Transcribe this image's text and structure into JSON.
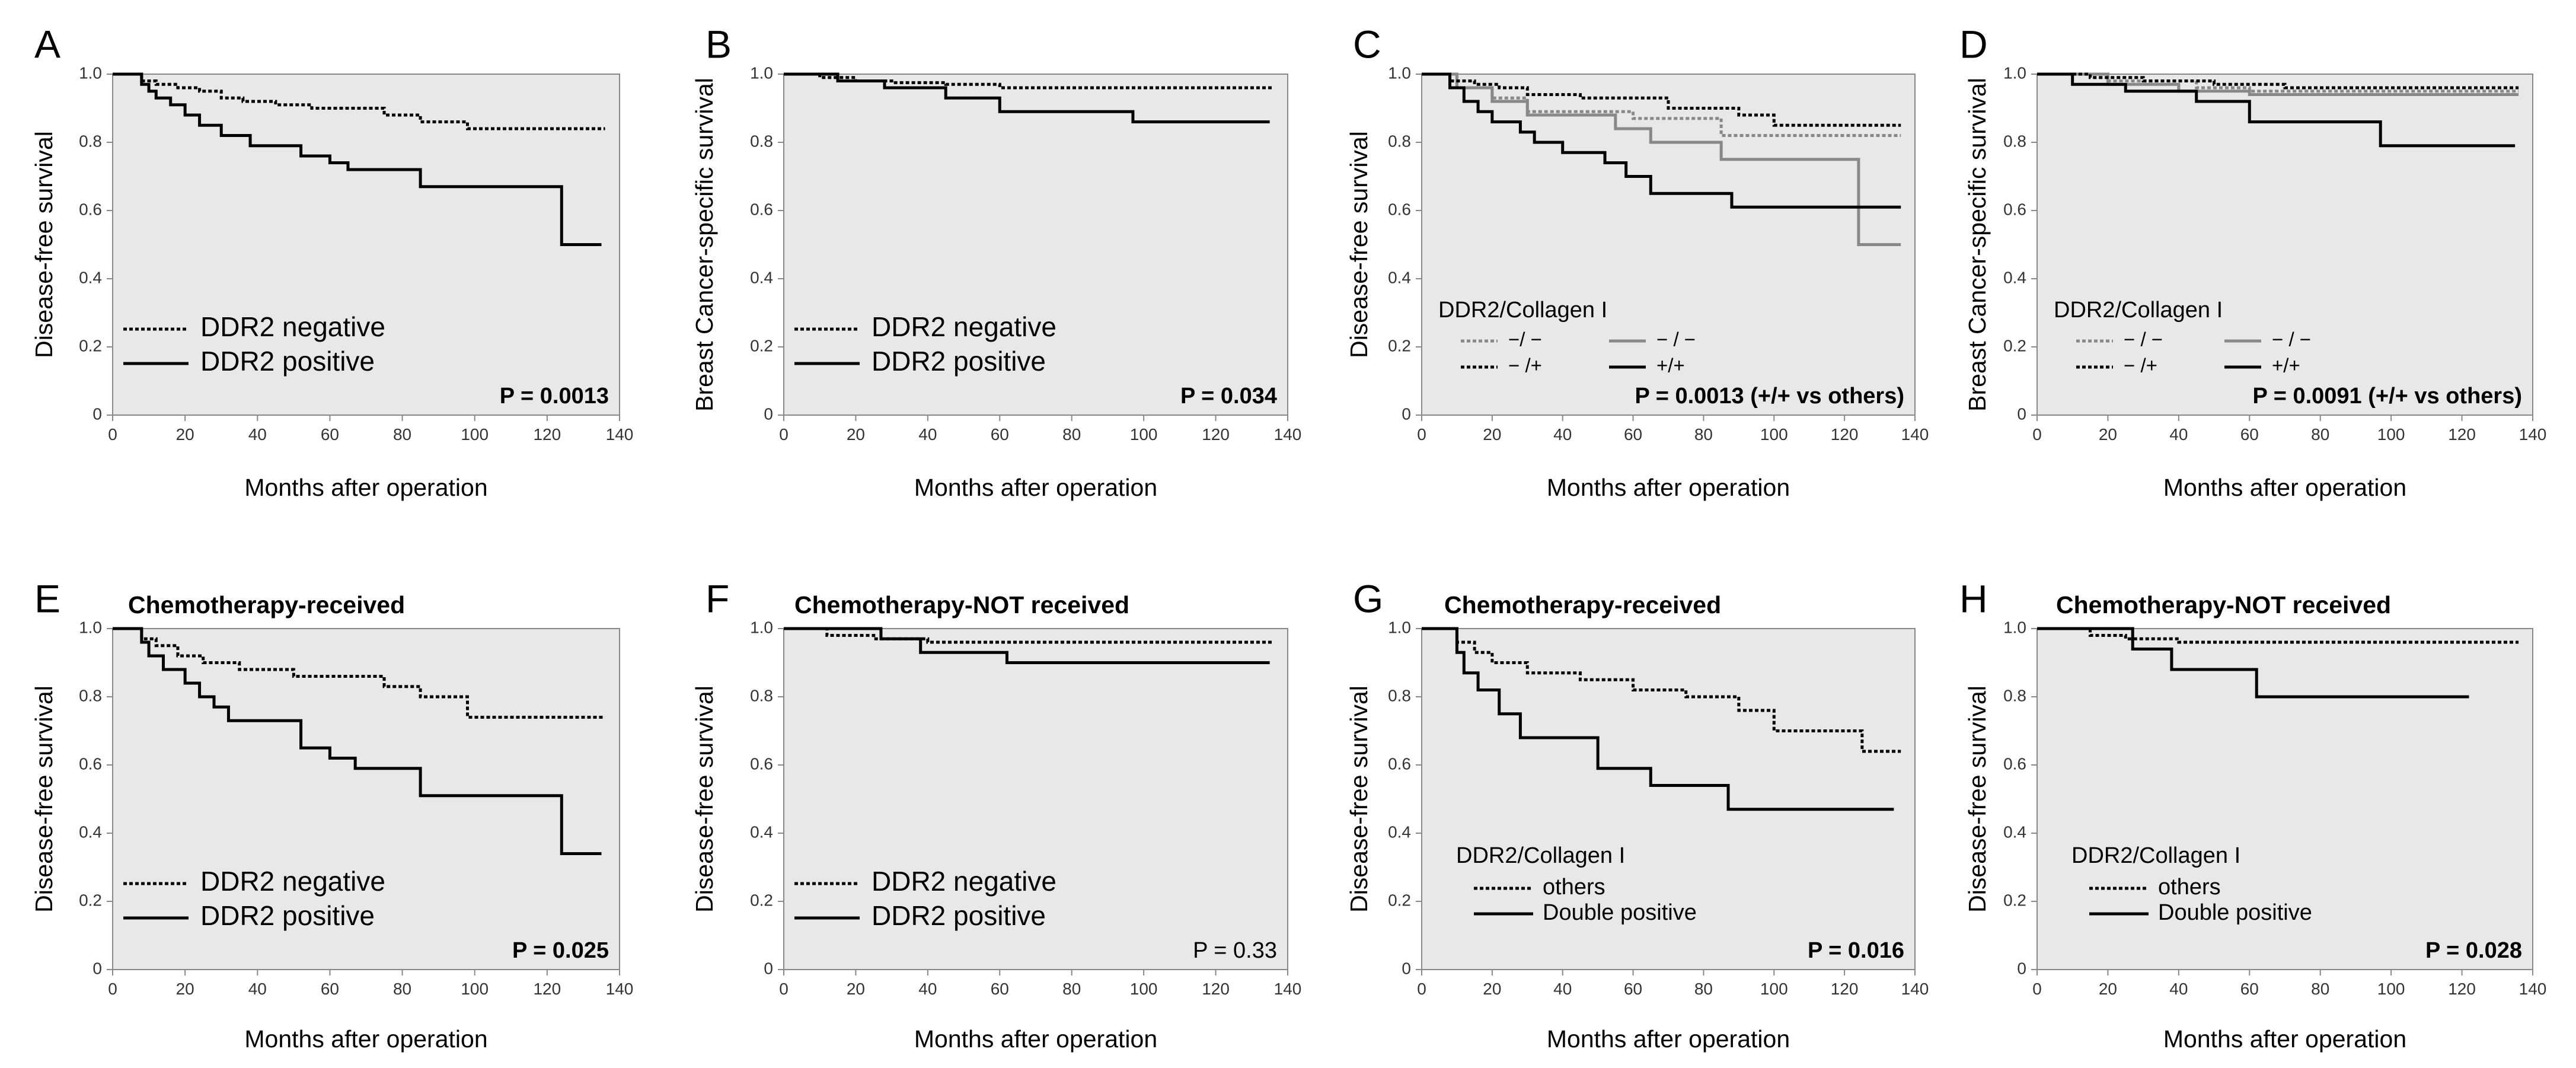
{
  "chart_data": [
    {
      "panel": "A",
      "type": "line",
      "title": "",
      "xlabel": "Months after operation",
      "ylabel": "Disease-free survival",
      "xlim": [
        0,
        140
      ],
      "ylim": [
        0,
        1
      ],
      "xticks": [
        "0",
        "20",
        "40",
        "60",
        "80",
        "100",
        "120",
        "140"
      ],
      "yticks": [
        "0",
        "0.2",
        "0.4",
        "0.6",
        "0.8",
        "1.0"
      ],
      "legend_title": "",
      "legend_style": "large",
      "series": [
        {
          "name": "DDR2 negative",
          "style": "dotted",
          "color": "#000000",
          "x": [
            0,
            8,
            12,
            18,
            24,
            30,
            36,
            45,
            55,
            75,
            85,
            98,
            136
          ],
          "y": [
            1.0,
            0.98,
            0.97,
            0.96,
            0.95,
            0.93,
            0.92,
            0.91,
            0.9,
            0.88,
            0.86,
            0.84,
            0.84
          ]
        },
        {
          "name": "DDR2 positive",
          "style": "solid",
          "color": "#000000",
          "x": [
            0,
            8,
            10,
            12,
            16,
            20,
            24,
            30,
            38,
            52,
            60,
            65,
            85,
            124,
            135
          ],
          "y": [
            1.0,
            0.97,
            0.95,
            0.93,
            0.91,
            0.88,
            0.85,
            0.82,
            0.79,
            0.76,
            0.74,
            0.72,
            0.67,
            0.5,
            0.5
          ]
        }
      ],
      "p_value": "P = 0.0013",
      "p_bold": true
    },
    {
      "panel": "B",
      "type": "line",
      "title": "",
      "xlabel": "Months after operation",
      "ylabel": "Breast Cancer-specific survival",
      "xlim": [
        0,
        140
      ],
      "ylim": [
        0,
        1
      ],
      "xticks": [
        "0",
        "20",
        "40",
        "60",
        "80",
        "100",
        "120",
        "140"
      ],
      "yticks": [
        "0",
        "0.2",
        "0.4",
        "0.6",
        "0.8",
        "1.0"
      ],
      "legend_title": "",
      "legend_style": "large",
      "series": [
        {
          "name": "DDR2 negative",
          "style": "dotted",
          "color": "#000000",
          "x": [
            0,
            10,
            20,
            30,
            45,
            60,
            136
          ],
          "y": [
            1.0,
            0.99,
            0.98,
            0.975,
            0.97,
            0.96,
            0.96
          ]
        },
        {
          "name": "DDR2 positive",
          "style": "solid",
          "color": "#000000",
          "x": [
            0,
            15,
            28,
            45,
            60,
            97,
            135
          ],
          "y": [
            1.0,
            0.98,
            0.96,
            0.93,
            0.89,
            0.86,
            0.86
          ]
        }
      ],
      "p_value": "P = 0.034",
      "p_bold": true
    },
    {
      "panel": "C",
      "type": "line",
      "title": "",
      "xlabel": "Months after operation",
      "ylabel": "Disease-free survival",
      "xlim": [
        0,
        140
      ],
      "ylim": [
        0,
        1
      ],
      "xticks": [
        "0",
        "20",
        "40",
        "60",
        "80",
        "100",
        "120",
        "140"
      ],
      "yticks": [
        "0",
        "0.2",
        "0.4",
        "0.6",
        "0.8",
        "1.0"
      ],
      "legend_title": "DDR2/Collagen I",
      "legend_style": "grid",
      "series": [
        {
          "name": "−/ −",
          "style": "dotted",
          "color": "#888888",
          "x": [
            0,
            10,
            20,
            30,
            60,
            85,
            136
          ],
          "y": [
            1.0,
            0.96,
            0.93,
            0.89,
            0.87,
            0.82,
            0.82
          ]
        },
        {
          "name": "− / −",
          "style": "solid",
          "color": "#888888",
          "x": [
            0,
            10,
            20,
            30,
            55,
            65,
            85,
            124,
            136
          ],
          "y": [
            1.0,
            0.96,
            0.92,
            0.88,
            0.84,
            0.8,
            0.75,
            0.5,
            0.5
          ]
        },
        {
          "name": "− /+",
          "style": "dotted",
          "color": "#000000",
          "x": [
            0,
            8,
            15,
            22,
            30,
            45,
            70,
            90,
            100,
            136
          ],
          "y": [
            1.0,
            0.98,
            0.97,
            0.96,
            0.94,
            0.93,
            0.9,
            0.88,
            0.85,
            0.85
          ]
        },
        {
          "name": "+/+",
          "style": "solid",
          "color": "#000000",
          "x": [
            0,
            8,
            12,
            16,
            20,
            28,
            32,
            40,
            52,
            58,
            65,
            88,
            136
          ],
          "y": [
            1.0,
            0.96,
            0.92,
            0.89,
            0.86,
            0.83,
            0.8,
            0.77,
            0.74,
            0.7,
            0.65,
            0.61,
            0.61
          ]
        }
      ],
      "p_value": "P = 0.0013 (+/+ vs others)",
      "p_bold": true
    },
    {
      "panel": "D",
      "type": "line",
      "title": "",
      "xlabel": "Months after operation",
      "ylabel": "Breast Cancer-specific survival",
      "xlim": [
        0,
        140
      ],
      "ylim": [
        0,
        1
      ],
      "xticks": [
        "0",
        "20",
        "40",
        "60",
        "80",
        "100",
        "120",
        "140"
      ],
      "yticks": [
        "0",
        "0.2",
        "0.4",
        "0.6",
        "0.8",
        "1.0"
      ],
      "legend_title": "DDR2/Collagen I",
      "legend_style": "grid",
      "series": [
        {
          "name": "− / −",
          "style": "dotted",
          "color": "#888888",
          "x": [
            0,
            20,
            45,
            60,
            136
          ],
          "y": [
            1.0,
            0.98,
            0.96,
            0.95,
            0.95
          ]
        },
        {
          "name": "− / −",
          "style": "solid",
          "color": "#888888",
          "x": [
            0,
            20,
            40,
            60,
            136
          ],
          "y": [
            1.0,
            0.97,
            0.95,
            0.94,
            0.94
          ]
        },
        {
          "name": "− /+",
          "style": "dotted",
          "color": "#000000",
          "x": [
            0,
            15,
            30,
            50,
            70,
            136
          ],
          "y": [
            1.0,
            0.99,
            0.98,
            0.97,
            0.96,
            0.96
          ]
        },
        {
          "name": "+/+",
          "style": "solid",
          "color": "#000000",
          "x": [
            0,
            10,
            25,
            45,
            60,
            97,
            135
          ],
          "y": [
            1.0,
            0.97,
            0.95,
            0.92,
            0.86,
            0.79,
            0.79
          ]
        }
      ],
      "p_value": "P = 0.0091 (+/+ vs others)",
      "p_bold": true
    },
    {
      "panel": "E",
      "type": "line",
      "title": "Chemotherapy-received",
      "xlabel": "Months after operation",
      "ylabel": "Disease-free survival",
      "xlim": [
        0,
        140
      ],
      "ylim": [
        0,
        1
      ],
      "xticks": [
        "0",
        "20",
        "40",
        "60",
        "80",
        "100",
        "120",
        "140"
      ],
      "yticks": [
        "0",
        "0.2",
        "0.4",
        "0.6",
        "0.8",
        "1.0"
      ],
      "legend_title": "",
      "legend_style": "large",
      "series": [
        {
          "name": "DDR2 negative",
          "style": "dotted",
          "color": "#000000",
          "x": [
            0,
            8,
            12,
            18,
            25,
            35,
            50,
            75,
            85,
            98,
            136
          ],
          "y": [
            1.0,
            0.97,
            0.95,
            0.92,
            0.9,
            0.88,
            0.86,
            0.83,
            0.8,
            0.74,
            0.74
          ]
        },
        {
          "name": "DDR2 positive",
          "style": "solid",
          "color": "#000000",
          "x": [
            0,
            8,
            10,
            14,
            20,
            24,
            28,
            32,
            52,
            60,
            67,
            85,
            124,
            135
          ],
          "y": [
            1.0,
            0.96,
            0.92,
            0.88,
            0.84,
            0.8,
            0.77,
            0.73,
            0.65,
            0.62,
            0.59,
            0.51,
            0.34,
            0.34
          ]
        }
      ],
      "p_value": "P = 0.025",
      "p_bold": true
    },
    {
      "panel": "F",
      "type": "line",
      "title": "Chemotherapy-NOT received",
      "xlabel": "Months after operation",
      "ylabel": "Disease-free survival",
      "xlim": [
        0,
        140
      ],
      "ylim": [
        0,
        1
      ],
      "xticks": [
        "0",
        "20",
        "40",
        "60",
        "80",
        "100",
        "120",
        "140"
      ],
      "yticks": [
        "0",
        "0.2",
        "0.4",
        "0.6",
        "0.8",
        "1.0"
      ],
      "legend_title": "",
      "legend_style": "large",
      "series": [
        {
          "name": "DDR2 negative",
          "style": "dotted",
          "color": "#000000",
          "x": [
            0,
            12,
            25,
            40,
            136
          ],
          "y": [
            1.0,
            0.98,
            0.97,
            0.96,
            0.96
          ]
        },
        {
          "name": "DDR2 positive",
          "style": "solid",
          "color": "#000000",
          "x": [
            0,
            27,
            38,
            62,
            135
          ],
          "y": [
            1.0,
            0.97,
            0.93,
            0.9,
            0.9
          ]
        }
      ],
      "p_value": "P = 0.33",
      "p_bold": false
    },
    {
      "panel": "G",
      "type": "line",
      "title": "Chemotherapy-received",
      "xlabel": "Months after operation",
      "ylabel": "Disease-free survival",
      "xlim": [
        0,
        140
      ],
      "ylim": [
        0,
        1
      ],
      "xticks": [
        "0",
        "20",
        "40",
        "60",
        "80",
        "100",
        "120",
        "140"
      ],
      "yticks": [
        "0",
        "0.2",
        "0.4",
        "0.6",
        "0.8",
        "1.0"
      ],
      "legend_title": "DDR2/Collagen I",
      "legend_style": "medium",
      "series": [
        {
          "name": "others",
          "style": "dotted",
          "color": "#000000",
          "x": [
            0,
            10,
            15,
            20,
            30,
            45,
            60,
            75,
            90,
            100,
            125,
            136
          ],
          "y": [
            1.0,
            0.96,
            0.93,
            0.9,
            0.87,
            0.85,
            0.82,
            0.8,
            0.76,
            0.7,
            0.64,
            0.64
          ]
        },
        {
          "name": "Double positive",
          "style": "solid",
          "color": "#000000",
          "x": [
            0,
            10,
            12,
            16,
            22,
            28,
            50,
            65,
            87,
            134
          ],
          "y": [
            1.0,
            0.93,
            0.87,
            0.82,
            0.75,
            0.68,
            0.59,
            0.54,
            0.47,
            0.47
          ]
        }
      ],
      "p_value": "P = 0.016",
      "p_bold": true
    },
    {
      "panel": "H",
      "type": "line",
      "title": "Chemotherapy-NOT received",
      "xlabel": "Months after operation",
      "ylabel": "Disease-free survival",
      "xlim": [
        0,
        140
      ],
      "ylim": [
        0,
        1
      ],
      "xticks": [
        "0",
        "20",
        "40",
        "60",
        "80",
        "100",
        "120",
        "140"
      ],
      "yticks": [
        "0",
        "0.2",
        "0.4",
        "0.6",
        "0.8",
        "1.0"
      ],
      "legend_title": "DDR2/Collagen I",
      "legend_style": "medium",
      "series": [
        {
          "name": "others",
          "style": "dotted",
          "color": "#000000",
          "x": [
            0,
            15,
            25,
            40,
            136
          ],
          "y": [
            1.0,
            0.98,
            0.97,
            0.96,
            0.96
          ]
        },
        {
          "name": "Double positive",
          "style": "solid",
          "color": "#000000",
          "x": [
            0,
            27,
            38,
            62,
            122
          ],
          "y": [
            1.0,
            0.94,
            0.88,
            0.8,
            0.8
          ]
        }
      ],
      "p_value": "P = 0.028",
      "p_bold": true
    }
  ],
  "colors": {
    "plot_bg": "#e8e8e8",
    "axis": "#888888",
    "line_dark": "#000000",
    "line_gray": "#888888"
  }
}
